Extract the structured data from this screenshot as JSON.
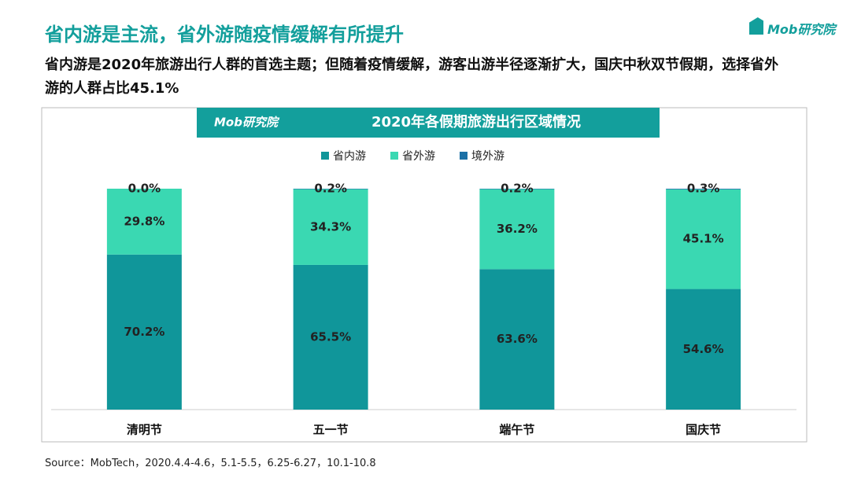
{
  "header": {
    "title": "省内游是主流，省外游随疫情缓解有所提升",
    "subtitle": "省内游是2020年旅游出行人群的首选主题；但随着疫情缓解，游客出游半径逐渐扩大，国庆中秋双节假期，选择省外游的人群占比45.1%",
    "logo": "Mob研究院"
  },
  "chart_data": {
    "type": "stacked_bar",
    "title": "2020年各假期旅游出行区域情况",
    "categories": [
      "清明节",
      "五一节",
      "端午节",
      "国庆节"
    ],
    "series": [
      {
        "name": "省内游",
        "color": "#10969a",
        "values": [
          70.2,
          65.5,
          63.6,
          54.6
        ],
        "value_labels": [
          "70.2%",
          "65.5%",
          "63.6%",
          "54.6%"
        ]
      },
      {
        "name": "省外游",
        "color": "#3ad8b2",
        "values": [
          29.8,
          34.3,
          36.2,
          45.1
        ],
        "value_labels": [
          "29.8%",
          "34.3%",
          "36.2%",
          "45.1%"
        ]
      },
      {
        "name": "境外游",
        "color": "#1b70a6",
        "values": [
          0.0,
          0.2,
          0.2,
          0.3
        ],
        "value_labels": [
          "0.0%",
          "0.2%",
          "0.2%",
          "0.3%"
        ]
      }
    ],
    "ylim": [
      0,
      100
    ],
    "legend": "top"
  },
  "source": "Source：MobTech，2020.4.4-4.6，5.1-5.5，6.25-6.27，10.1-10.8"
}
